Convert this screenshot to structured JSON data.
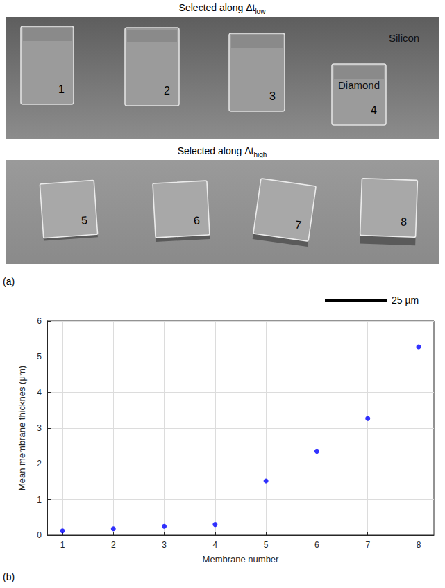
{
  "panel_a": {
    "label": "(a)",
    "scale_bar": "25 µm",
    "rows": [
      {
        "title": "Selected along Δt",
        "title_subscript": "low",
        "labels": [
          "1",
          "2",
          "3",
          "4"
        ],
        "annotations": [
          "Silicon",
          "Diamond"
        ]
      },
      {
        "title": "Selected along Δt",
        "title_subscript": "high",
        "labels": [
          "5",
          "6",
          "7",
          "8"
        ]
      }
    ]
  },
  "panel_b": {
    "label": "(b)"
  },
  "chart_data": {
    "type": "scatter",
    "xlabel": "Membrane number",
    "ylabel": "Mean membrane thicknes (μm)",
    "x": [
      1,
      2,
      3,
      4,
      5,
      6,
      7,
      8
    ],
    "values": [
      0.12,
      0.18,
      0.25,
      0.3,
      1.52,
      2.35,
      3.27,
      5.28
    ],
    "color": "#0000ff",
    "marker": "circle",
    "xlim": [
      0.7,
      8.3
    ],
    "xticks": [
      1,
      2,
      3,
      4,
      5,
      6,
      7,
      8
    ],
    "ylim": [
      0,
      6
    ],
    "yticks": [
      0,
      1,
      2,
      3,
      4,
      5,
      6
    ],
    "grid": true
  }
}
